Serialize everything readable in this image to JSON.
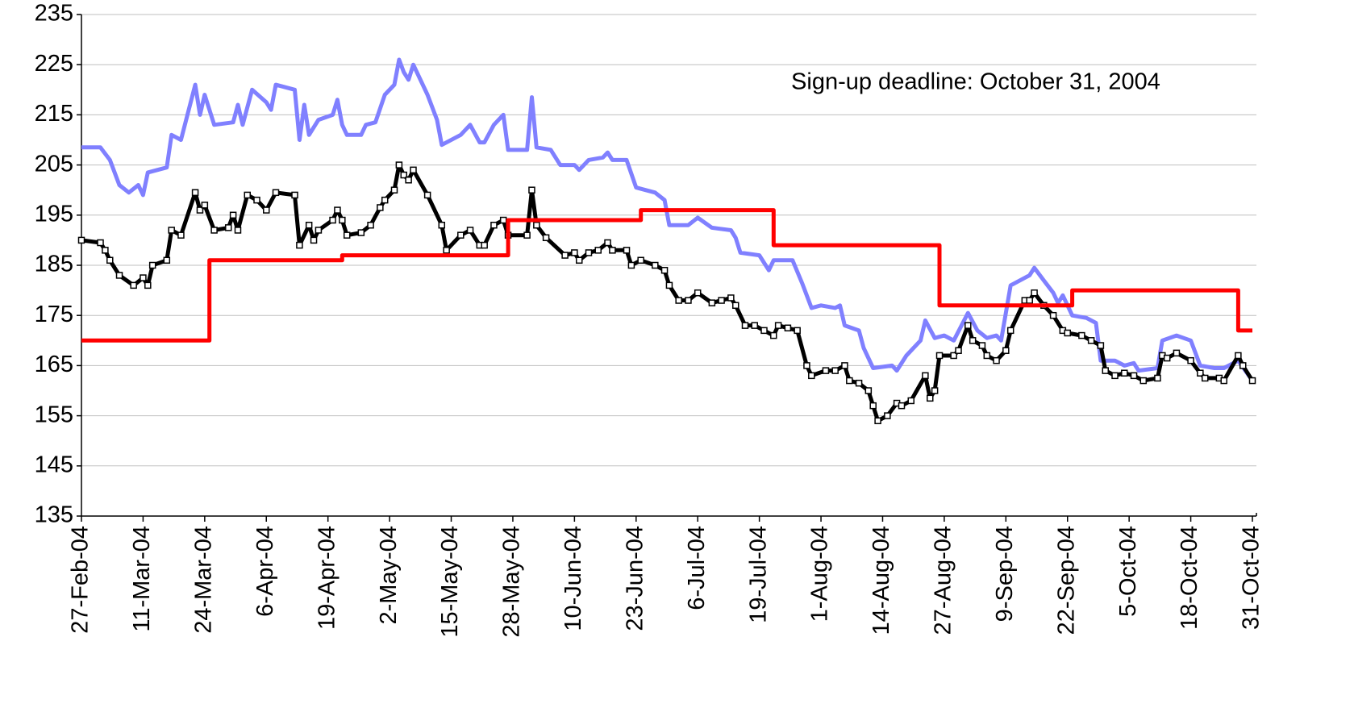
{
  "chart_data": {
    "type": "line",
    "annotation": "Sign-up deadline:  October 31, 2004",
    "xlim": [
      "2004-02-27",
      "2004-10-31"
    ],
    "xticks": [
      {
        "value": "2004-02-27",
        "label": "27-Feb-04"
      },
      {
        "value": "2004-03-11",
        "label": "11-Mar-04"
      },
      {
        "value": "2004-03-24",
        "label": "24-Mar-04"
      },
      {
        "value": "2004-04-06",
        "label": "6-Apr-04"
      },
      {
        "value": "2004-04-19",
        "label": "19-Apr-04"
      },
      {
        "value": "2004-05-02",
        "label": "2-May-04"
      },
      {
        "value": "2004-05-15",
        "label": "15-May-04"
      },
      {
        "value": "2004-05-28",
        "label": "28-May-04"
      },
      {
        "value": "2004-06-10",
        "label": "10-Jun-04"
      },
      {
        "value": "2004-06-23",
        "label": "23-Jun-04"
      },
      {
        "value": "2004-07-06",
        "label": "6-Jul-04"
      },
      {
        "value": "2004-07-19",
        "label": "19-Jul-04"
      },
      {
        "value": "2004-08-01",
        "label": "1-Aug-04"
      },
      {
        "value": "2004-08-14",
        "label": "14-Aug-04"
      },
      {
        "value": "2004-08-27",
        "label": "27-Aug-04"
      },
      {
        "value": "2004-09-09",
        "label": "9-Sep-04"
      },
      {
        "value": "2004-09-22",
        "label": "22-Sep-04"
      },
      {
        "value": "2004-10-05",
        "label": "5-Oct-04"
      },
      {
        "value": "2004-10-18",
        "label": "18-Oct-04"
      },
      {
        "value": "2004-10-31",
        "label": "31-Oct-04"
      }
    ],
    "ylim": [
      135,
      235
    ],
    "yticks": [
      135,
      145,
      155,
      165,
      175,
      185,
      195,
      205,
      215,
      225,
      235
    ],
    "grid": true,
    "series": [
      {
        "color": "#8080ff",
        "x": [
          "2004-02-27",
          "2004-03-02",
          "2004-03-04",
          "2004-03-06",
          "2004-03-08",
          "2004-03-10",
          "2004-03-11",
          "2004-03-12",
          "2004-03-16",
          "2004-03-17",
          "2004-03-19",
          "2004-03-22",
          "2004-03-23",
          "2004-03-24",
          "2004-03-26",
          "2004-03-30",
          "2004-03-31",
          "2004-04-01",
          "2004-04-03",
          "2004-04-06",
          "2004-04-07",
          "2004-04-08",
          "2004-04-12",
          "2004-04-13",
          "2004-04-14",
          "2004-04-15",
          "2004-04-17",
          "2004-04-20",
          "2004-04-21",
          "2004-04-22",
          "2004-04-23",
          "2004-04-26",
          "2004-04-27",
          "2004-04-29",
          "2004-05-01",
          "2004-05-03",
          "2004-05-04",
          "2004-05-05",
          "2004-05-06",
          "2004-05-07",
          "2004-05-10",
          "2004-05-12",
          "2004-05-13",
          "2004-05-17",
          "2004-05-19",
          "2004-05-21",
          "2004-05-22",
          "2004-05-24",
          "2004-05-26",
          "2004-05-27",
          "2004-05-31",
          "2004-06-01",
          "2004-06-02",
          "2004-06-05",
          "2004-06-07",
          "2004-06-10",
          "2004-06-11",
          "2004-06-13",
          "2004-06-16",
          "2004-06-17",
          "2004-06-18",
          "2004-06-21",
          "2004-06-23",
          "2004-06-25",
          "2004-06-27",
          "2004-06-29",
          "2004-06-30",
          "2004-07-04",
          "2004-07-06",
          "2004-07-09",
          "2004-07-13",
          "2004-07-14",
          "2004-07-15",
          "2004-07-19",
          "2004-07-21",
          "2004-07-22",
          "2004-07-26",
          "2004-07-28",
          "2004-07-30",
          "2004-08-01",
          "2004-08-04",
          "2004-08-05",
          "2004-08-06",
          "2004-08-09",
          "2004-08-10",
          "2004-08-12",
          "2004-08-16",
          "2004-08-17",
          "2004-08-19",
          "2004-08-22",
          "2004-08-23",
          "2004-08-25",
          "2004-08-27",
          "2004-08-29",
          "2004-09-01",
          "2004-09-03",
          "2004-09-05",
          "2004-09-07",
          "2004-09-08",
          "2004-09-10",
          "2004-09-14",
          "2004-09-15",
          "2004-09-17",
          "2004-09-19",
          "2004-09-20",
          "2004-09-21",
          "2004-09-23",
          "2004-09-26",
          "2004-09-28",
          "2004-09-29",
          "2004-10-02",
          "2004-10-04",
          "2004-10-06",
          "2004-10-07",
          "2004-10-11",
          "2004-10-12",
          "2004-10-15",
          "2004-10-18",
          "2004-10-20",
          "2004-10-23",
          "2004-10-25",
          "2004-10-28",
          "2004-10-31"
        ],
        "values": [
          208.5,
          208.5,
          206,
          201,
          199.5,
          201,
          199,
          203.5,
          204.5,
          211,
          210,
          221,
          215,
          219,
          213,
          213.5,
          217,
          213,
          220,
          217.5,
          216,
          221,
          220,
          210,
          217,
          211,
          214,
          215,
          218,
          213,
          211,
          211,
          213,
          213.5,
          219,
          221,
          226,
          223.5,
          222,
          225,
          219,
          214,
          209,
          211,
          213,
          209.5,
          209.5,
          213,
          215,
          208,
          208,
          218.5,
          208.5,
          208,
          205,
          205,
          204,
          206,
          206.5,
          207.5,
          206,
          206,
          200.5,
          200,
          199.5,
          198,
          193,
          193,
          194.5,
          192.5,
          192,
          190.5,
          187.5,
          187,
          184,
          186,
          186,
          181.5,
          176.5,
          177,
          176.5,
          177,
          173,
          172,
          168.5,
          164.5,
          165,
          164,
          167,
          170,
          174,
          170.5,
          171,
          170,
          175.5,
          172,
          170.5,
          171,
          170,
          181,
          183,
          184.5,
          182,
          179.5,
          177.5,
          179,
          175,
          174.5,
          173.5,
          166,
          166,
          165,
          165.5,
          164,
          164.5,
          170,
          171,
          170,
          165,
          164.5,
          164.5,
          166,
          162
        ]
      },
      {
        "color": "#000000",
        "marker": "square",
        "x": [
          "2004-02-27",
          "2004-03-02",
          "2004-03-03",
          "2004-03-04",
          "2004-03-06",
          "2004-03-09",
          "2004-03-11",
          "2004-03-12",
          "2004-03-13",
          "2004-03-16",
          "2004-03-17",
          "2004-03-19",
          "2004-03-22",
          "2004-03-23",
          "2004-03-24",
          "2004-03-26",
          "2004-03-29",
          "2004-03-30",
          "2004-03-31",
          "2004-04-02",
          "2004-04-04",
          "2004-04-06",
          "2004-04-08",
          "2004-04-12",
          "2004-04-13",
          "2004-04-15",
          "2004-04-16",
          "2004-04-17",
          "2004-04-20",
          "2004-04-21",
          "2004-04-22",
          "2004-04-23",
          "2004-04-26",
          "2004-04-28",
          "2004-04-30",
          "2004-05-01",
          "2004-05-03",
          "2004-05-04",
          "2004-05-05",
          "2004-05-06",
          "2004-05-07",
          "2004-05-10",
          "2004-05-13",
          "2004-05-14",
          "2004-05-17",
          "2004-05-19",
          "2004-05-21",
          "2004-05-22",
          "2004-05-24",
          "2004-05-26",
          "2004-05-27",
          "2004-05-31",
          "2004-06-01",
          "2004-06-02",
          "2004-06-04",
          "2004-06-08",
          "2004-06-10",
          "2004-06-11",
          "2004-06-13",
          "2004-06-15",
          "2004-06-17",
          "2004-06-18",
          "2004-06-21",
          "2004-06-22",
          "2004-06-24",
          "2004-06-27",
          "2004-06-29",
          "2004-06-30",
          "2004-07-02",
          "2004-07-04",
          "2004-07-06",
          "2004-07-09",
          "2004-07-11",
          "2004-07-13",
          "2004-07-14",
          "2004-07-16",
          "2004-07-18",
          "2004-07-20",
          "2004-07-22",
          "2004-07-23",
          "2004-07-25",
          "2004-07-27",
          "2004-07-29",
          "2004-07-30",
          "2004-08-02",
          "2004-08-04",
          "2004-08-06",
          "2004-08-07",
          "2004-08-09",
          "2004-08-11",
          "2004-08-12",
          "2004-08-13",
          "2004-08-15",
          "2004-08-17",
          "2004-08-18",
          "2004-08-20",
          "2004-08-23",
          "2004-08-24",
          "2004-08-25",
          "2004-08-26",
          "2004-08-29",
          "2004-08-30",
          "2004-09-01",
          "2004-09-02",
          "2004-09-04",
          "2004-09-05",
          "2004-09-07",
          "2004-09-09",
          "2004-09-10",
          "2004-09-13",
          "2004-09-14",
          "2004-09-15",
          "2004-09-17",
          "2004-09-19",
          "2004-09-21",
          "2004-09-22",
          "2004-09-25",
          "2004-09-27",
          "2004-09-29",
          "2004-09-30",
          "2004-10-02",
          "2004-10-04",
          "2004-10-06",
          "2004-10-08",
          "2004-10-11",
          "2004-10-12",
          "2004-10-13",
          "2004-10-15",
          "2004-10-18",
          "2004-10-20",
          "2004-10-21",
          "2004-10-24",
          "2004-10-25",
          "2004-10-28",
          "2004-10-29",
          "2004-10-31"
        ],
        "values": [
          190,
          189.5,
          188,
          186,
          183,
          181,
          182.5,
          181,
          185,
          186,
          192,
          191,
          199.5,
          196,
          197,
          192,
          192.5,
          195,
          192,
          199,
          198,
          196,
          199.5,
          199,
          189,
          193,
          190,
          192,
          194,
          196,
          194,
          191,
          191.5,
          193,
          196.5,
          198,
          200,
          205,
          203,
          202,
          204,
          199,
          193,
          188,
          191,
          192,
          189,
          189,
          193,
          194,
          191,
          191,
          200,
          193,
          190.5,
          187,
          187.5,
          186,
          187.5,
          188,
          189.5,
          188,
          188,
          185,
          186,
          185,
          184,
          181,
          178,
          178,
          179.5,
          177.5,
          178,
          178.5,
          177,
          173,
          173,
          172,
          171,
          173,
          172.5,
          172,
          165,
          163,
          164,
          164,
          165,
          162,
          161.5,
          160,
          157,
          154,
          155,
          157.5,
          157,
          158,
          163,
          158.5,
          160,
          167,
          167,
          168,
          173,
          170,
          169,
          167,
          166,
          168,
          172,
          178,
          178,
          179.5,
          177,
          175,
          172,
          171.5,
          171,
          170,
          169,
          164,
          163,
          163.5,
          163,
          162,
          162.5,
          167,
          166.5,
          167.5,
          166,
          163.5,
          162.5,
          162.5,
          162,
          167,
          165,
          162
        ]
      },
      {
        "color": "#ff0000",
        "x": [
          "2004-02-27",
          "2004-03-25",
          "2004-03-25",
          "2004-04-22",
          "2004-04-22",
          "2004-05-27",
          "2004-05-27",
          "2004-06-24",
          "2004-06-24",
          "2004-07-22",
          "2004-07-22",
          "2004-08-26",
          "2004-08-26",
          "2004-09-23",
          "2004-09-23",
          "2004-10-28",
          "2004-10-28",
          "2004-10-31"
        ],
        "values": [
          170,
          170,
          186,
          186,
          187,
          187,
          194,
          194,
          196,
          196,
          189,
          189,
          177,
          177,
          180,
          180,
          172,
          172
        ]
      }
    ]
  }
}
